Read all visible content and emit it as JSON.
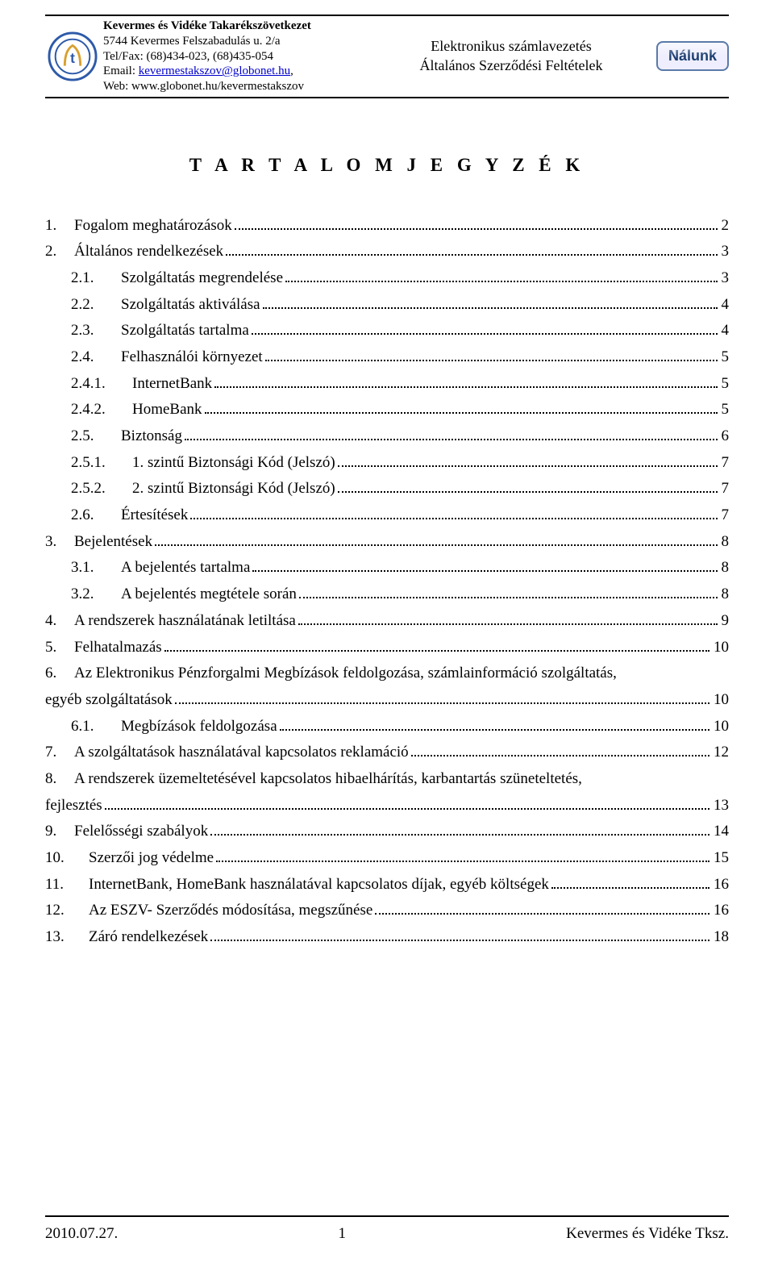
{
  "header": {
    "org_name": "Kevermes és Vidéke Takarékszövetkezet",
    "addr": "5744 Kevermes Felszabadulás u. 2/a",
    "tel": "Tel/Fax: (68)434-023, (68)435-054",
    "email_label": "Email: ",
    "email": "kevermestakszov@globonet.hu",
    "email_after": ",",
    "web_label": "Web: ",
    "web": "www.globonet.hu/kevermestakszov",
    "center_line1": "Elektronikus számlavezetés",
    "center_line2": "Általános Szerződési Feltételek",
    "badge": "Nálunk"
  },
  "title": "T A R T A L O M J E G Y Z É K",
  "toc": [
    {
      "lvl": 1,
      "num": "1.",
      "label": "Fogalom meghatározások",
      "page": "2"
    },
    {
      "lvl": 1,
      "num": "2.",
      "label": "Általános rendelkezések",
      "page": "3"
    },
    {
      "lvl": 2,
      "num": "2.1.",
      "label": "Szolgáltatás megrendelése",
      "page": "3"
    },
    {
      "lvl": 2,
      "num": "2.2.",
      "label": "Szolgáltatás aktiválása",
      "page": "4"
    },
    {
      "lvl": 2,
      "num": "2.3.",
      "label": "Szolgáltatás tartalma",
      "page": "4"
    },
    {
      "lvl": 2,
      "num": "2.4.",
      "label": "Felhasználói környezet",
      "page": "5"
    },
    {
      "lvl": 3,
      "num": "2.4.1.",
      "label": "InternetBank",
      "page": "5"
    },
    {
      "lvl": 3,
      "num": "2.4.2.",
      "label": "HomeBank",
      "page": "5"
    },
    {
      "lvl": 2,
      "num": "2.5.",
      "label": "Biztonság",
      "page": "6"
    },
    {
      "lvl": 3,
      "num": "2.5.1.",
      "label": "1. szintű Biztonsági Kód (Jelszó)",
      "page": "7"
    },
    {
      "lvl": 3,
      "num": "2.5.2.",
      "label": "2. szintű Biztonsági Kód (Jelszó)",
      "page": "7"
    },
    {
      "lvl": 2,
      "num": "2.6.",
      "label": "Értesítések",
      "page": "7"
    },
    {
      "lvl": 1,
      "num": "3.",
      "label": "Bejelentések",
      "page": "8"
    },
    {
      "lvl": 2,
      "num": "3.1.",
      "label": "A bejelentés tartalma",
      "page": "8"
    },
    {
      "lvl": 2,
      "num": "3.2.",
      "label": "A bejelentés megtétele során",
      "page": "8"
    },
    {
      "lvl": 1,
      "num": "4.",
      "label": "A rendszerek használatának letiltása",
      "page": "9"
    },
    {
      "lvl": 1,
      "num": "5.",
      "label": "Felhatalmazás",
      "page": "10"
    },
    {
      "lvl": 1,
      "num": "6.",
      "label": "Az Elektronikus Pénzforgalmi Megbízások feldolgozása, számlainformáció szolgáltatás,",
      "wrap": true
    },
    {
      "cont": true,
      "label": "egyéb szolgáltatások",
      "page": "10"
    },
    {
      "lvl": 2,
      "num": "6.1.",
      "label": "Megbízások feldolgozása",
      "page": "10"
    },
    {
      "lvl": 1,
      "num": "7.",
      "label": "A szolgáltatások használatával kapcsolatos reklamáció",
      "page": "12"
    },
    {
      "lvl": 1,
      "num": "8.",
      "label": "A rendszerek üzemeltetésével kapcsolatos hibaelhárítás, karbantartás szüneteltetés,",
      "wrap": true
    },
    {
      "cont": true,
      "label": "fejlesztés",
      "page": "13"
    },
    {
      "lvl": 1,
      "num": "9.",
      "label": "Felelősségi szabályok",
      "page": "14"
    },
    {
      "lvl": 1,
      "num": "10.",
      "label": "Szerzői jog védelme",
      "page": "15",
      "wide": true
    },
    {
      "lvl": 1,
      "num": "11.",
      "label": "InternetBank, HomeBank használatával kapcsolatos díjak, egyéb költségek",
      "page": "16",
      "wide": true
    },
    {
      "lvl": 1,
      "num": "12.",
      "label": "Az ESZV- Szerződés módosítása, megszűnése",
      "page": "16",
      "wide": true
    },
    {
      "lvl": 1,
      "num": "13.",
      "label": "Záró rendelkezések",
      "page": "18",
      "wide": true
    }
  ],
  "footer": {
    "date": "2010.07.27.",
    "page": "1",
    "right": "Kevermes és Vidéke Tksz."
  }
}
